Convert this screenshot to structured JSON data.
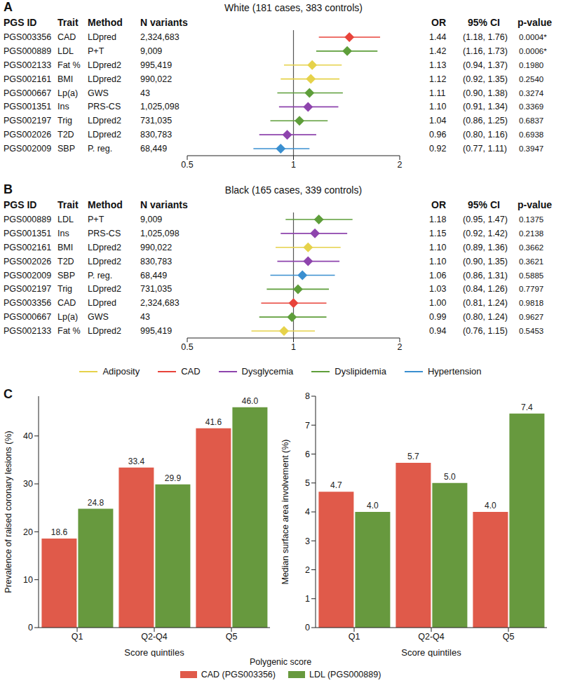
{
  "chart_data": [
    {
      "type": "forest",
      "panel_label": "A",
      "title": "White (181 cases, 383 controls)",
      "columns": [
        "PGS ID",
        "Trait",
        "Method",
        "N variants",
        "OR",
        "95% CI",
        "p-value"
      ],
      "log": "x",
      "xlim": [
        0.5,
        2
      ],
      "xticks": [
        0.5,
        1,
        2
      ],
      "reference_x": 1,
      "marker": "diamond",
      "groups": [
        {
          "name": "Adiposity",
          "color": "#e6d24a"
        },
        {
          "name": "CAD",
          "color": "#e8433a"
        },
        {
          "name": "Dysglycemia",
          "color": "#8e44ad"
        },
        {
          "name": "Dyslipidemia",
          "color": "#5e9e3a"
        },
        {
          "name": "Hypertension",
          "color": "#3a8fd0"
        }
      ],
      "rows": [
        {
          "pgs_id": "PGS003356",
          "trait": "CAD",
          "method": "LDpred",
          "n_variants": "2,324,683",
          "group": "CAD",
          "or": 1.44,
          "or_label": "1.44",
          "ci_low": 1.18,
          "ci_high": 1.76,
          "ci_label": "(1.18, 1.76)",
          "p_value": "0.0004*"
        },
        {
          "pgs_id": "PGS000889",
          "trait": "LDL",
          "method": "P+T",
          "n_variants": "9,009",
          "group": "Dyslipidemia",
          "or": 1.42,
          "or_label": "1.42",
          "ci_low": 1.16,
          "ci_high": 1.73,
          "ci_label": "(1.16, 1.73)",
          "p_value": "0.0006*"
        },
        {
          "pgs_id": "PGS002133",
          "trait": "Fat %",
          "method": "LDpred2",
          "n_variants": "995,419",
          "group": "Adiposity",
          "or": 1.13,
          "or_label": "1.13",
          "ci_low": 0.94,
          "ci_high": 1.37,
          "ci_label": "(0.94, 1.37)",
          "p_value": "0.1980"
        },
        {
          "pgs_id": "PGS002161",
          "trait": "BMI",
          "method": "LDpred2",
          "n_variants": "990,022",
          "group": "Adiposity",
          "or": 1.12,
          "or_label": "1.12",
          "ci_low": 0.92,
          "ci_high": 1.35,
          "ci_label": "(0.92, 1.35)",
          "p_value": "0.2540"
        },
        {
          "pgs_id": "PGS000667",
          "trait": "Lp(a)",
          "method": "GWS",
          "n_variants": "43",
          "group": "Dyslipidemia",
          "or": 1.11,
          "or_label": "1.11",
          "ci_low": 0.9,
          "ci_high": 1.38,
          "ci_label": "(0.90, 1.38)",
          "p_value": "0.3274"
        },
        {
          "pgs_id": "PGS001351",
          "trait": "Ins",
          "method": "PRS-CS",
          "n_variants": "1,025,098",
          "group": "Dysglycemia",
          "or": 1.1,
          "or_label": "1.10",
          "ci_low": 0.91,
          "ci_high": 1.34,
          "ci_label": "(0.91, 1.34)",
          "p_value": "0.3369"
        },
        {
          "pgs_id": "PGS002197",
          "trait": "Trig",
          "method": "LDpred2",
          "n_variants": "731,035",
          "group": "Dyslipidemia",
          "or": 1.04,
          "or_label": "1.04",
          "ci_low": 0.86,
          "ci_high": 1.25,
          "ci_label": "(0.86, 1.25)",
          "p_value": "0.6837"
        },
        {
          "pgs_id": "PGS002026",
          "trait": "T2D",
          "method": "LDpred2",
          "n_variants": "830,783",
          "group": "Dysglycemia",
          "or": 0.96,
          "or_label": "0.96",
          "ci_low": 0.8,
          "ci_high": 1.16,
          "ci_label": "(0.80, 1.16)",
          "p_value": "0.6938"
        },
        {
          "pgs_id": "PGS002009",
          "trait": "SBP",
          "method": "P. reg.",
          "n_variants": "68,449",
          "group": "Hypertension",
          "or": 0.92,
          "or_label": "0.92",
          "ci_low": 0.77,
          "ci_high": 1.11,
          "ci_label": "(0.77, 1.11)",
          "p_value": "0.3947"
        }
      ]
    },
    {
      "type": "forest",
      "panel_label": "B",
      "title": "Black (165 cases, 339 controls)",
      "columns": [
        "PGS ID",
        "Trait",
        "Method",
        "N variants",
        "OR",
        "95% CI",
        "p-value"
      ],
      "log": "x",
      "xlim": [
        0.5,
        2
      ],
      "xticks": [
        0.5,
        1,
        2
      ],
      "reference_x": 1,
      "marker": "diamond",
      "groups": [
        {
          "name": "Adiposity",
          "color": "#e6d24a"
        },
        {
          "name": "CAD",
          "color": "#e8433a"
        },
        {
          "name": "Dysglycemia",
          "color": "#8e44ad"
        },
        {
          "name": "Dyslipidemia",
          "color": "#5e9e3a"
        },
        {
          "name": "Hypertension",
          "color": "#3a8fd0"
        }
      ],
      "rows": [
        {
          "pgs_id": "PGS000889",
          "trait": "LDL",
          "method": "P+T",
          "n_variants": "9,009",
          "group": "Dyslipidemia",
          "or": 1.18,
          "or_label": "1.18",
          "ci_low": 0.95,
          "ci_high": 1.47,
          "ci_label": "(0.95, 1.47)",
          "p_value": "0.1375"
        },
        {
          "pgs_id": "PGS001351",
          "trait": "Ins",
          "method": "PRS-CS",
          "n_variants": "1,025,098",
          "group": "Dysglycemia",
          "or": 1.15,
          "or_label": "1.15",
          "ci_low": 0.92,
          "ci_high": 1.42,
          "ci_label": "(0.92, 1.42)",
          "p_value": "0.2138"
        },
        {
          "pgs_id": "PGS002161",
          "trait": "BMI",
          "method": "LDpred2",
          "n_variants": "990,022",
          "group": "Adiposity",
          "or": 1.1,
          "or_label": "1.10",
          "ci_low": 0.89,
          "ci_high": 1.36,
          "ci_label": "(0.89, 1.36)",
          "p_value": "0.3662"
        },
        {
          "pgs_id": "PGS002026",
          "trait": "T2D",
          "method": "LDpred2",
          "n_variants": "830,783",
          "group": "Dysglycemia",
          "or": 1.1,
          "or_label": "1.10",
          "ci_low": 0.9,
          "ci_high": 1.35,
          "ci_label": "(0.90, 1.35)",
          "p_value": "0.3621"
        },
        {
          "pgs_id": "PGS002009",
          "trait": "SBP",
          "method": "P. reg.",
          "n_variants": "68,449",
          "group": "Hypertension",
          "or": 1.06,
          "or_label": "1.06",
          "ci_low": 0.86,
          "ci_high": 1.31,
          "ci_label": "(0.86, 1.31)",
          "p_value": "0.5885"
        },
        {
          "pgs_id": "PGS002197",
          "trait": "Trig",
          "method": "LDpred2",
          "n_variants": "731,035",
          "group": "Dyslipidemia",
          "or": 1.03,
          "or_label": "1.03",
          "ci_low": 0.84,
          "ci_high": 1.26,
          "ci_label": "(0.84, 1.26)",
          "p_value": "0.7797"
        },
        {
          "pgs_id": "PGS003356",
          "trait": "CAD",
          "method": "LDpred",
          "n_variants": "2,324,683",
          "group": "CAD",
          "or": 1.0,
          "or_label": "1.00",
          "ci_low": 0.81,
          "ci_high": 1.24,
          "ci_label": "(0.81, 1.24)",
          "p_value": "0.9818"
        },
        {
          "pgs_id": "PGS000667",
          "trait": "Lp(a)",
          "method": "GWS",
          "n_variants": "43",
          "group": "Dyslipidemia",
          "or": 0.99,
          "or_label": "0.99",
          "ci_low": 0.8,
          "ci_high": 1.24,
          "ci_label": "(0.80, 1.24)",
          "p_value": "0.9627"
        },
        {
          "pgs_id": "PGS002133",
          "trait": "Fat %",
          "method": "LDpred2",
          "n_variants": "995,419",
          "group": "Adiposity",
          "or": 0.94,
          "or_label": "0.94",
          "ci_low": 0.76,
          "ci_high": 1.15,
          "ci_label": "(0.76, 1.15)",
          "p_value": "0.5453"
        }
      ]
    },
    {
      "type": "bar",
      "panel_label": "C",
      "categories": [
        "Q1",
        "Q2-Q4",
        "Q5"
      ],
      "x_label": "Score quintiles",
      "legend_title": "Polygenic score",
      "data_labels": true,
      "series": [
        {
          "name": "CAD (PGS003356)",
          "color": "#e05a4a"
        },
        {
          "name": "LDL (PGS000889)",
          "color": "#67993e"
        }
      ],
      "subplots": [
        {
          "y_label": "Prevalence of raised coronary lesions (%)",
          "ylim": [
            0,
            48.3
          ],
          "yticks": [
            0,
            10,
            20,
            30,
            40
          ],
          "values": [
            [
              18.6,
              33.4,
              41.6
            ],
            [
              24.8,
              29.9,
              46.0
            ]
          ],
          "value_labels": [
            [
              "18.6",
              "33.4",
              "41.6"
            ],
            [
              "24.8",
              "29.9",
              "46.0"
            ]
          ]
        },
        {
          "y_label": "Median surface area involvement (%)",
          "ylim": [
            0,
            8
          ],
          "yticks": [
            0,
            1,
            2,
            3,
            4,
            5,
            6,
            7,
            8
          ],
          "values": [
            [
              4.7,
              5.7,
              4.0
            ],
            [
              4.0,
              5.0,
              7.4
            ]
          ],
          "value_labels": [
            [
              "4.7",
              "5.7",
              "4.0"
            ],
            [
              "4.0",
              "5.0",
              "7.4"
            ]
          ]
        }
      ]
    }
  ]
}
